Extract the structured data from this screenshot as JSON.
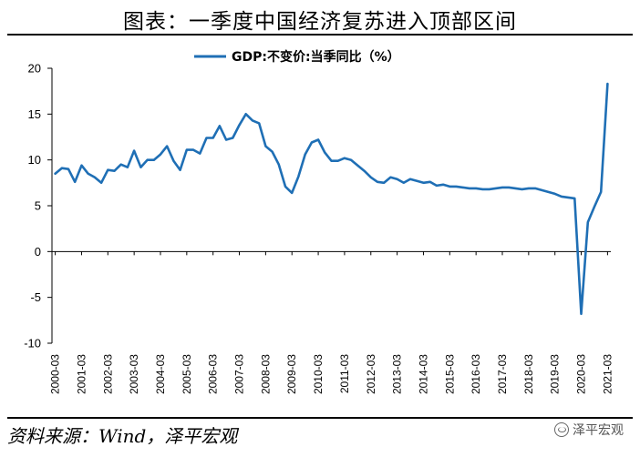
{
  "title": "图表：一季度中国经济复苏进入顶部区间",
  "source": "资料来源：Wind，泽平宏观",
  "watermark": "泽平宏观",
  "watermark_icon": "wechat-icon",
  "chart_data": {
    "type": "line",
    "title": "",
    "xlabel": "",
    "ylabel": "",
    "ylim": [
      -10,
      20
    ],
    "yticks": [
      -10,
      -5,
      0,
      5,
      10,
      15,
      20
    ],
    "grid": false,
    "legend_position": "top-center",
    "x_tick_labels": [
      "2000-03",
      "2001-03",
      "2002-03",
      "2003-03",
      "2004-03",
      "2005-03",
      "2006-03",
      "2007-03",
      "2008-03",
      "2009-03",
      "2010-03",
      "2011-03",
      "2012-03",
      "2013-03",
      "2014-03",
      "2015-03",
      "2016-03",
      "2017-03",
      "2018-03",
      "2019-03",
      "2020-03",
      "2021-03"
    ],
    "series": [
      {
        "name": "GDP:不变价:当季同比（%）",
        "color": "#1f6fb5",
        "x": [
          "2000-03",
          "2000-06",
          "2000-09",
          "2000-12",
          "2001-03",
          "2001-06",
          "2001-09",
          "2001-12",
          "2002-03",
          "2002-06",
          "2002-09",
          "2002-12",
          "2003-03",
          "2003-06",
          "2003-09",
          "2003-12",
          "2004-03",
          "2004-06",
          "2004-09",
          "2004-12",
          "2005-03",
          "2005-06",
          "2005-09",
          "2005-12",
          "2006-03",
          "2006-06",
          "2006-09",
          "2006-12",
          "2007-03",
          "2007-06",
          "2007-09",
          "2007-12",
          "2008-03",
          "2008-06",
          "2008-09",
          "2008-12",
          "2009-03",
          "2009-06",
          "2009-09",
          "2009-12",
          "2010-03",
          "2010-06",
          "2010-09",
          "2010-12",
          "2011-03",
          "2011-06",
          "2011-09",
          "2011-12",
          "2012-03",
          "2012-06",
          "2012-09",
          "2012-12",
          "2013-03",
          "2013-06",
          "2013-09",
          "2013-12",
          "2014-03",
          "2014-06",
          "2014-09",
          "2014-12",
          "2015-03",
          "2015-06",
          "2015-09",
          "2015-12",
          "2016-03",
          "2016-06",
          "2016-09",
          "2016-12",
          "2017-03",
          "2017-06",
          "2017-09",
          "2017-12",
          "2018-03",
          "2018-06",
          "2018-09",
          "2018-12",
          "2019-03",
          "2019-06",
          "2019-09",
          "2019-12",
          "2020-03",
          "2020-06",
          "2020-09",
          "2020-12",
          "2021-03"
        ],
        "values": [
          8.5,
          9.1,
          9.0,
          7.6,
          9.4,
          8.5,
          8.1,
          7.5,
          8.9,
          8.8,
          9.5,
          9.2,
          11.0,
          9.2,
          10.0,
          10.0,
          10.6,
          11.5,
          9.9,
          8.9,
          11.1,
          11.1,
          10.7,
          12.4,
          12.4,
          13.7,
          12.2,
          12.4,
          13.8,
          15.0,
          14.3,
          14.0,
          11.5,
          10.9,
          9.5,
          7.1,
          6.4,
          8.2,
          10.6,
          11.9,
          12.2,
          10.8,
          9.9,
          9.9,
          10.2,
          10.0,
          9.4,
          8.8,
          8.1,
          7.6,
          7.5,
          8.1,
          7.9,
          7.5,
          7.9,
          7.7,
          7.5,
          7.6,
          7.2,
          7.3,
          7.1,
          7.1,
          7.0,
          6.9,
          6.9,
          6.8,
          6.8,
          6.9,
          7.0,
          7.0,
          6.9,
          6.8,
          6.9,
          6.9,
          6.7,
          6.5,
          6.3,
          6.0,
          5.9,
          5.8,
          -6.8,
          3.2,
          4.9,
          6.5,
          18.3
        ]
      }
    ]
  }
}
